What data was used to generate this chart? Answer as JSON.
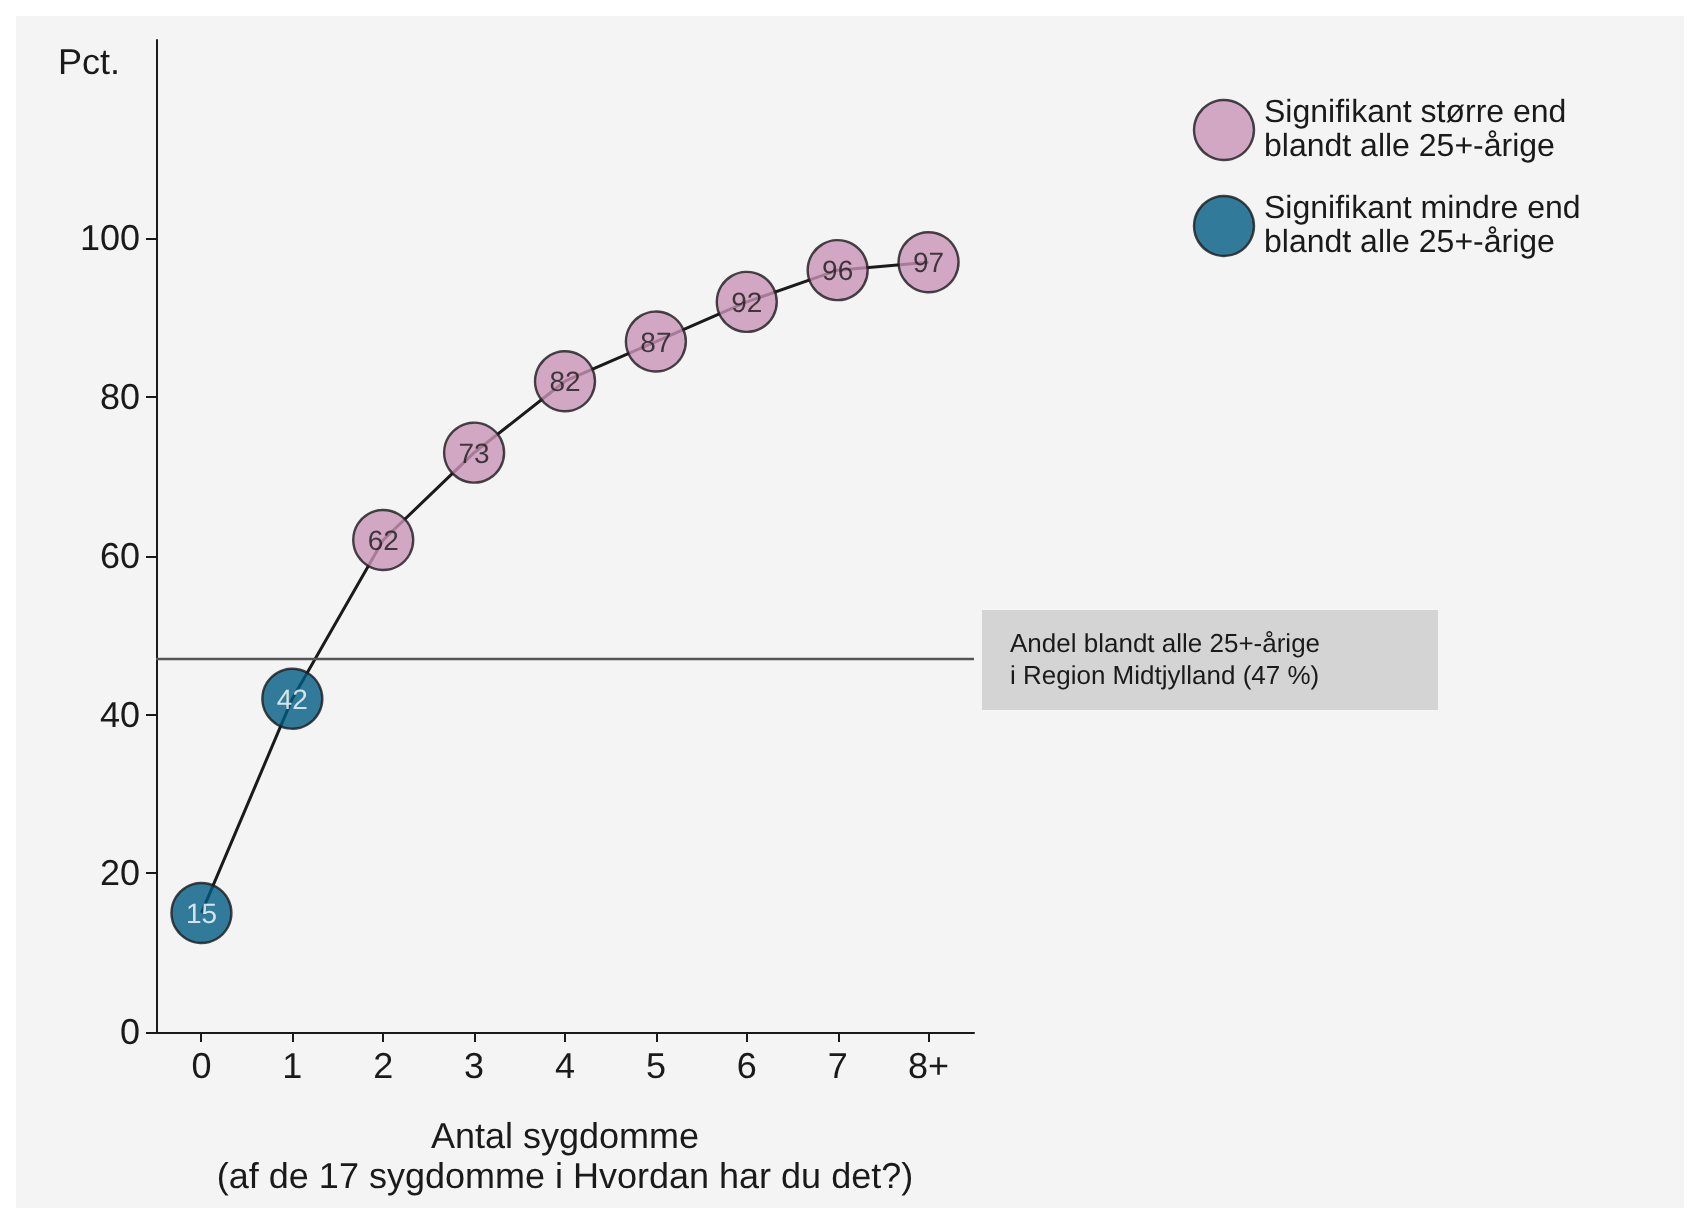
{
  "chart_data": {
    "type": "line",
    "xlabel": "Antal sygdomme\n(af de 17 sygdomme i Hvordan har du det?)",
    "ylabel": "Pct.",
    "categories": [
      "0",
      "1",
      "2",
      "3",
      "4",
      "5",
      "6",
      "7",
      "8+"
    ],
    "series": [
      {
        "color": "#1a1a1a",
        "marker": "none",
        "values": [
          15,
          42,
          62,
          73,
          82,
          87,
          92,
          96,
          97
        ]
      },
      {
        "type": "scatter",
        "name": "Signifikant større end blandt alle 25+-årige",
        "color": "#c994b8",
        "marker": "circle",
        "values": [
          null,
          null,
          62,
          73,
          82,
          87,
          92,
          96,
          97
        ],
        "value_labels": [
          null,
          null,
          "62",
          "73",
          "82",
          "87",
          "92",
          "96",
          "97"
        ]
      },
      {
        "type": "scatter",
        "name": "Signifikant mindre end blandt alle 25+-årige",
        "color": "#005b82",
        "marker": "circle",
        "values": [
          15,
          42,
          null,
          null,
          null,
          null,
          null,
          null,
          null
        ],
        "value_labels": [
          "15",
          "42",
          null,
          null,
          null,
          null,
          null,
          null,
          null
        ]
      }
    ],
    "ylim": [
      0,
      125
    ],
    "yticks": [
      0,
      20,
      40,
      60,
      80,
      100
    ],
    "grid": false,
    "legend": "top right",
    "ref_lines": [
      {
        "axis": "y",
        "value": 47,
        "label": "Andel blandt alle 25+-årige i Region Midtjylland (47 %)",
        "color": "#555555"
      }
    ]
  }
}
